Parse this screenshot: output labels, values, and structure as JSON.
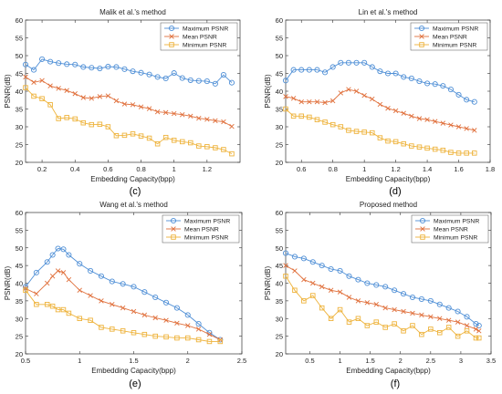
{
  "colors": {
    "max": "#4f8fd6",
    "mean": "#e0703c",
    "min": "#eeb33c",
    "axis": "#333333",
    "grid": "#eeeeee"
  },
  "chart_data": [
    {
      "type": "line",
      "panel": "(c)",
      "title": "Malik et al.'s method",
      "xlabel": "Embedding Capacity(bpp)",
      "ylabel": "PSNR(dB)",
      "xlim": [
        0.1,
        1.4
      ],
      "ylim": [
        20,
        60
      ],
      "xticks": [
        0.2,
        0.4,
        0.6,
        0.8,
        1,
        1.2
      ],
      "xtick_labels": [
        "0.2",
        "0.4",
        "0.6",
        "0.8",
        "1",
        "1.2"
      ],
      "yticks": [
        20,
        25,
        30,
        35,
        40,
        45,
        50,
        55,
        60
      ],
      "ytick_labels": [
        "20",
        "25",
        "30",
        "35",
        "40",
        "45",
        "50",
        "55",
        "60"
      ],
      "legend": [
        "Maximum PSNR",
        "Mean PSNR",
        "Minimum PSNR"
      ],
      "legend_position": "top-right",
      "x": [
        0.1,
        0.15,
        0.2,
        0.25,
        0.3,
        0.35,
        0.4,
        0.45,
        0.5,
        0.55,
        0.6,
        0.65,
        0.7,
        0.75,
        0.8,
        0.85,
        0.9,
        0.95,
        1.0,
        1.05,
        1.1,
        1.15,
        1.2,
        1.25,
        1.3,
        1.35
      ],
      "series": [
        {
          "name": "Maximum PSNR",
          "marker": "circle",
          "values": [
            47.5,
            46.0,
            49.0,
            48.3,
            47.9,
            47.6,
            47.5,
            46.8,
            46.6,
            46.4,
            46.9,
            46.8,
            46.2,
            45.6,
            45.2,
            44.7,
            44.0,
            43.6,
            45.1,
            43.7,
            43.1,
            42.9,
            42.8,
            42.1,
            44.6,
            42.4
          ]
        },
        {
          "name": "Mean PSNR",
          "marker": "cross",
          "values": [
            44.0,
            42.5,
            43.0,
            41.5,
            40.8,
            40.2,
            39.3,
            38.2,
            38.0,
            38.5,
            38.7,
            37.3,
            36.4,
            36.2,
            35.6,
            35.1,
            34.2,
            34.0,
            33.7,
            33.4,
            33.0,
            32.4,
            32.1,
            31.7,
            31.4,
            30.1
          ]
        },
        {
          "name": "Minimum PSNR",
          "marker": "square",
          "values": [
            41.0,
            38.6,
            37.9,
            36.2,
            32.3,
            32.6,
            32.2,
            31.1,
            30.6,
            30.7,
            30.0,
            27.5,
            27.6,
            28.0,
            27.4,
            26.8,
            25.2,
            27.0,
            26.2,
            25.8,
            25.5,
            24.6,
            24.4,
            24.1,
            23.6,
            22.4
          ]
        }
      ]
    },
    {
      "type": "line",
      "panel": "(d)",
      "title": "Lin et al.'s method",
      "xlabel": "Embedding Capacity(bpp)",
      "ylabel": "PSNR(dB)",
      "xlim": [
        0.5,
        1.8
      ],
      "ylim": [
        20,
        60
      ],
      "xticks": [
        0.6,
        0.8,
        1,
        1.2,
        1.4,
        1.6,
        1.8
      ],
      "xtick_labels": [
        "0.6",
        "0.8",
        "1",
        "1.2",
        "1.4",
        "1.6",
        "1.8"
      ],
      "yticks": [
        20,
        25,
        30,
        35,
        40,
        45,
        50,
        55,
        60
      ],
      "ytick_labels": [
        "20",
        "25",
        "30",
        "35",
        "40",
        "45",
        "50",
        "55",
        "60"
      ],
      "legend": [
        "Maximum PSNR",
        "Mean PSNR",
        "Minimum PSNR"
      ],
      "legend_position": "top-right",
      "x": [
        0.5,
        0.55,
        0.6,
        0.65,
        0.7,
        0.75,
        0.8,
        0.85,
        0.9,
        0.95,
        1.0,
        1.05,
        1.1,
        1.15,
        1.2,
        1.25,
        1.3,
        1.35,
        1.4,
        1.45,
        1.5,
        1.55,
        1.6,
        1.65,
        1.7
      ],
      "series": [
        {
          "name": "Maximum PSNR",
          "marker": "circle",
          "values": [
            43.0,
            46.0,
            46.0,
            46.0,
            46.0,
            45.3,
            46.8,
            48.0,
            48.0,
            48.0,
            48.0,
            46.8,
            45.6,
            45.0,
            45.0,
            44.0,
            43.6,
            42.8,
            42.2,
            42.0,
            41.5,
            40.5,
            39.0,
            37.6,
            37.0
          ]
        },
        {
          "name": "Mean PSNR",
          "marker": "cross",
          "values": [
            38.5,
            38.0,
            37.0,
            37.0,
            37.0,
            36.8,
            37.3,
            39.5,
            40.5,
            40.0,
            38.8,
            37.8,
            36.3,
            35.2,
            34.5,
            33.8,
            33.0,
            32.3,
            32.0,
            31.5,
            31.0,
            30.5,
            30.0,
            29.5,
            29.0
          ]
        },
        {
          "name": "Minimum PSNR",
          "marker": "square",
          "values": [
            35.0,
            33.0,
            33.0,
            32.7,
            32.0,
            31.3,
            30.6,
            30.0,
            29.0,
            28.7,
            28.5,
            28.3,
            26.9,
            26.0,
            25.8,
            25.2,
            24.6,
            24.3,
            24.0,
            23.7,
            23.4,
            22.8,
            22.6,
            22.6,
            22.6
          ]
        }
      ]
    },
    {
      "type": "line",
      "panel": "(e)",
      "title": "Wang et al.'s method",
      "xlabel": "Embedding Capacity(bpp)",
      "ylabel": "PSNR(dB)",
      "xlim": [
        0.5,
        2.5
      ],
      "ylim": [
        20,
        60
      ],
      "xticks": [
        0.5,
        1,
        1.5,
        2,
        2.5
      ],
      "xtick_labels": [
        "0.5",
        "1",
        "1.5",
        "2",
        "2.5"
      ],
      "yticks": [
        20,
        25,
        30,
        35,
        40,
        45,
        50,
        55,
        60
      ],
      "ytick_labels": [
        "20",
        "25",
        "30",
        "35",
        "40",
        "45",
        "50",
        "55",
        "60"
      ],
      "legend": [
        "Maximum PSNR",
        "Mean PSNR",
        "Minimum PSNR"
      ],
      "legend_position": "top-right",
      "x": [
        0.5,
        0.6,
        0.7,
        0.75,
        0.8,
        0.85,
        0.9,
        1.0,
        1.1,
        1.2,
        1.3,
        1.4,
        1.5,
        1.6,
        1.7,
        1.8,
        1.9,
        2.0,
        2.1,
        2.2,
        2.3
      ],
      "series": [
        {
          "name": "Maximum PSNR",
          "marker": "circle",
          "values": [
            39.0,
            43.0,
            46.0,
            48.0,
            49.8,
            49.6,
            48.0,
            45.5,
            43.5,
            42.0,
            40.5,
            39.8,
            39.0,
            37.5,
            36.0,
            34.5,
            33.0,
            31.0,
            28.5,
            26.0,
            24.0
          ]
        },
        {
          "name": "Mean PSNR",
          "marker": "cross",
          "values": [
            38.5,
            37.0,
            40.0,
            42.0,
            43.5,
            43.0,
            41.0,
            38.0,
            36.5,
            35.0,
            34.0,
            33.0,
            32.0,
            31.0,
            30.2,
            29.5,
            28.7,
            28.0,
            27.0,
            25.5,
            24.0
          ]
        },
        {
          "name": "Minimum PSNR",
          "marker": "square",
          "values": [
            38.0,
            34.0,
            34.0,
            33.5,
            32.5,
            32.5,
            31.5,
            30.0,
            29.5,
            27.5,
            27.0,
            26.5,
            26.0,
            25.5,
            25.0,
            24.8,
            24.5,
            24.5,
            24.0,
            23.5,
            23.5
          ]
        }
      ]
    },
    {
      "type": "line",
      "panel": "(f)",
      "title": "Proposed method",
      "xlabel": "Embedding Capacity(bpp)",
      "ylabel": "PSNR(dB)",
      "xlim": [
        0.1,
        3.5
      ],
      "ylim": [
        20,
        60
      ],
      "xticks": [
        0.5,
        1,
        1.5,
        2,
        2.5,
        3,
        3.5
      ],
      "xtick_labels": [
        "0.5",
        "1",
        "1.5",
        "2",
        "2.5",
        "3",
        "3.5"
      ],
      "yticks": [
        20,
        25,
        30,
        35,
        40,
        45,
        50,
        55,
        60
      ],
      "ytick_labels": [
        "20",
        "25",
        "30",
        "35",
        "40",
        "45",
        "50",
        "55",
        "60"
      ],
      "legend": [
        "Maximum PSNR",
        "Mean PSNR",
        "Minimum PSNR"
      ],
      "legend_position": "top-right",
      "x": [
        0.1,
        0.25,
        0.4,
        0.55,
        0.7,
        0.85,
        1.0,
        1.15,
        1.3,
        1.45,
        1.6,
        1.75,
        1.9,
        2.05,
        2.2,
        2.35,
        2.5,
        2.65,
        2.8,
        2.95,
        3.1,
        3.25,
        3.3
      ],
      "series": [
        {
          "name": "Maximum PSNR",
          "marker": "circle",
          "values": [
            48.5,
            47.5,
            47.0,
            46.0,
            45.0,
            44.0,
            43.5,
            42.0,
            41.0,
            40.0,
            39.5,
            39.0,
            38.0,
            37.0,
            36.0,
            35.5,
            35.0,
            34.0,
            33.0,
            32.0,
            30.5,
            28.5,
            28.0
          ]
        },
        {
          "name": "Mean PSNR",
          "marker": "cross",
          "values": [
            45.0,
            43.5,
            41.0,
            40.0,
            39.0,
            38.0,
            37.5,
            36.0,
            35.0,
            34.5,
            34.0,
            33.0,
            32.5,
            32.0,
            31.5,
            31.0,
            30.5,
            30.0,
            29.5,
            29.0,
            28.0,
            27.0,
            26.5
          ]
        },
        {
          "name": "Minimum PSNR",
          "marker": "square",
          "values": [
            42.0,
            38.0,
            35.0,
            36.5,
            33.0,
            30.0,
            32.5,
            29.0,
            30.0,
            28.0,
            29.0,
            27.5,
            28.5,
            26.5,
            28.0,
            25.5,
            27.0,
            26.0,
            27.5,
            25.0,
            26.5,
            24.5,
            24.5
          ]
        }
      ]
    }
  ],
  "panel_labels": [
    "(c)",
    "(d)",
    "(e)",
    "(f)"
  ]
}
